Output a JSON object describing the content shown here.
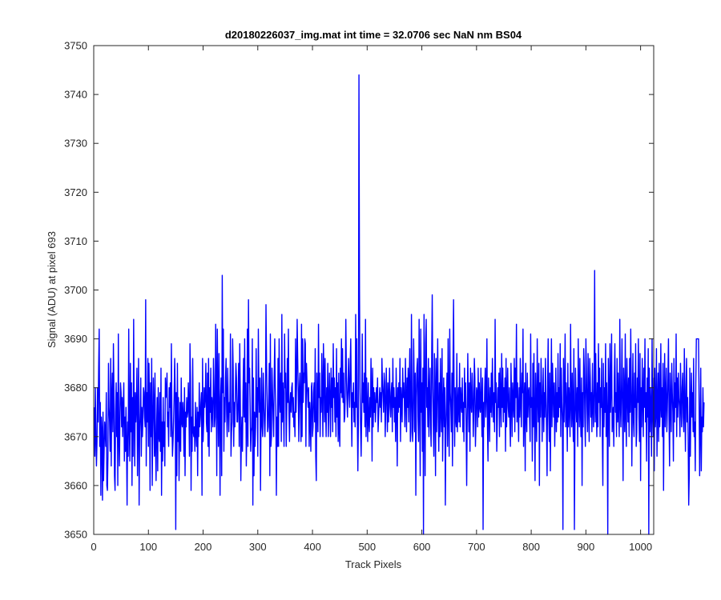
{
  "chart_data": {
    "type": "line",
    "title": "d20180226037_img.mat int time = 32.0706 sec  NaN nm BS04",
    "xlabel": "Track Pixels",
    "ylabel": "Signal (ADU) at pixel 693",
    "xlim": [
      0,
      1024
    ],
    "ylim": [
      3650,
      3750
    ],
    "xticks": [
      0,
      100,
      200,
      300,
      400,
      500,
      600,
      700,
      800,
      900,
      1000
    ],
    "yticks": [
      3650,
      3660,
      3670,
      3680,
      3690,
      3700,
      3710,
      3720,
      3730,
      3740,
      3750
    ],
    "grid": false,
    "line_color": "#0000ff",
    "series": [
      {
        "x_start": 1,
        "x_step": 1,
        "values": [
          3676,
          3666,
          3680,
          3670,
          3664,
          3669,
          3680,
          3673,
          3684,
          3692,
          3668,
          3677,
          3658,
          3674,
          3671,
          3657,
          3675,
          3661,
          3667,
          3673,
          3671,
          3668,
          3679,
          3660,
          3659,
          3666,
          3685,
          3676,
          3673,
          3667,
          3686,
          3664,
          3678,
          3683,
          3671,
          3689,
          3679,
          3662,
          3659,
          3675,
          3681,
          3670,
          3679,
          3660,
          3691,
          3670,
          3664,
          3675,
          3681,
          3679,
          3672,
          3678,
          3670,
          3676,
          3681,
          3665,
          3674,
          3667,
          3676,
          3668,
          3656,
          3673,
          3666,
          3692,
          3672,
          3665,
          3685,
          3671,
          3681,
          3660,
          3678,
          3666,
          3694,
          3674,
          3664,
          3679,
          3673,
          3677,
          3684,
          3662,
          3674,
          3686,
          3656,
          3671,
          3675,
          3682,
          3666,
          3676,
          3670,
          3674,
          3680,
          3679,
          3674,
          3672,
          3698,
          3664,
          3679,
          3673,
          3686,
          3668,
          3685,
          3677,
          3659,
          3681,
          3670,
          3686,
          3660,
          3672,
          3682,
          3676,
          3666,
          3683,
          3668,
          3661,
          3672,
          3678,
          3663,
          3680,
          3670,
          3669,
          3679,
          3667,
          3684,
          3658,
          3673,
          3665,
          3678,
          3668,
          3673,
          3664,
          3682,
          3678,
          3679,
          3683,
          3672,
          3675,
          3668,
          3680,
          3676,
          3681,
          3670,
          3689,
          3674,
          3666,
          3669,
          3673,
          3678,
          3686,
          3679,
          3651,
          3679,
          3662,
          3685,
          3669,
          3678,
          3661,
          3671,
          3677,
          3667,
          3682,
          3673,
          3672,
          3677,
          3674,
          3666,
          3680,
          3662,
          3675,
          3672,
          3678,
          3674,
          3675,
          3681,
          3676,
          3666,
          3689,
          3682,
          3659,
          3674,
          3667,
          3686,
          3671,
          3670,
          3672,
          3667,
          3677,
          3671,
          3668,
          3676,
          3662,
          3675,
          3670,
          3681,
          3672,
          3674,
          3677,
          3679,
          3658,
          3686,
          3669,
          3673,
          3680,
          3676,
          3678,
          3685,
          3673,
          3671,
          3683,
          3668,
          3686,
          3666,
          3680,
          3675,
          3684,
          3671,
          3678,
          3676,
          3672,
          3686,
          3680,
          3672,
          3674,
          3693,
          3681,
          3662,
          3692,
          3679,
          3668,
          3687,
          3676,
          3658,
          3678,
          3682,
          3662,
          3703,
          3679,
          3692,
          3667,
          3678,
          3673,
          3682,
          3686,
          3675,
          3670,
          3684,
          3676,
          3671,
          3677,
          3675,
          3691,
          3666,
          3671,
          3673,
          3690,
          3684,
          3668,
          3677,
          3672,
          3679,
          3685,
          3682,
          3673,
          3673,
          3678,
          3685,
          3668,
          3689,
          3679,
          3661,
          3670,
          3674,
          3667,
          3679,
          3686,
          3674,
          3690,
          3673,
          3681,
          3664,
          3672,
          3692,
          3668,
          3698,
          3681,
          3684,
          3676,
          3667,
          3671,
          3672,
          3690,
          3656,
          3682,
          3662,
          3675,
          3668,
          3672,
          3688,
          3674,
          3680,
          3666,
          3692,
          3680,
          3675,
          3682,
          3659,
          3674,
          3684,
          3672,
          3670,
          3683,
          3678,
          3673,
          3670,
          3676,
          3697,
          3685,
          3678,
          3671,
          3672,
          3678,
          3685,
          3662,
          3691,
          3668,
          3670,
          3684,
          3679,
          3674,
          3670,
          3682,
          3690,
          3680,
          3676,
          3658,
          3674,
          3668,
          3686,
          3668,
          3690,
          3678,
          3675,
          3683,
          3669,
          3695,
          3673,
          3681,
          3676,
          3668,
          3691,
          3680,
          3683,
          3668,
          3675,
          3686,
          3677,
          3692,
          3675,
          3669,
          3677,
          3679,
          3675,
          3680,
          3681,
          3674,
          3678,
          3672,
          3675,
          3670,
          3690,
          3675,
          3681,
          3694,
          3686,
          3679,
          3669,
          3680,
          3683,
          3676,
          3669,
          3693,
          3670,
          3690,
          3677,
          3683,
          3681,
          3690,
          3689,
          3668,
          3685,
          3681,
          3679,
          3676,
          3680,
          3668,
          3677,
          3674,
          3667,
          3680,
          3681,
          3670,
          3672,
          3679,
          3681,
          3673,
          3688,
          3666,
          3661,
          3683,
          3677,
          3671,
          3693,
          3678,
          3683,
          3670,
          3678,
          3675,
          3687,
          3679,
          3670,
          3689,
          3683,
          3673,
          3686,
          3676,
          3670,
          3680,
          3675,
          3685,
          3670,
          3677,
          3683,
          3677,
          3670,
          3684,
          3676,
          3682,
          3671,
          3689,
          3678,
          3682,
          3673,
          3680,
          3670,
          3688,
          3674,
          3681,
          3669,
          3683,
          3671,
          3668,
          3684,
          3679,
          3690,
          3678,
          3688,
          3677,
          3683,
          3673,
          3674,
          3679,
          3694,
          3683,
          3678,
          3674,
          3680,
          3686,
          3679,
          3676,
          3685,
          3690,
          3678,
          3668,
          3679,
          3676,
          3681,
          3673,
          3677,
          3672,
          3695,
          3676,
          3690,
          3674,
          3663,
          3673,
          3744,
          3700,
          3680,
          3672,
          3666,
          3674,
          3691,
          3677,
          3681,
          3675,
          3683,
          3672,
          3694,
          3670,
          3682,
          3676,
          3669,
          3681,
          3673,
          3671,
          3678,
          3674,
          3686,
          3679,
          3665,
          3684,
          3672,
          3680,
          3675,
          3679,
          3673,
          3676,
          3680,
          3677,
          3682,
          3671,
          3674,
          3677,
          3680,
          3676,
          3679,
          3673,
          3686,
          3681,
          3678,
          3675,
          3683,
          3681,
          3670,
          3676,
          3684,
          3678,
          3671,
          3681,
          3673,
          3678,
          3684,
          3676,
          3674,
          3679,
          3681,
          3671,
          3686,
          3676,
          3680,
          3673,
          3678,
          3669,
          3684,
          3677,
          3664,
          3680,
          3675,
          3681,
          3676,
          3686,
          3669,
          3680,
          3677,
          3673,
          3684,
          3678,
          3681,
          3677,
          3672,
          3686,
          3678,
          3671,
          3682,
          3676,
          3684,
          3673,
          3681,
          3688,
          3669,
          3671,
          3695,
          3679,
          3669,
          3672,
          3690,
          3681,
          3671,
          3683,
          3658,
          3678,
          3684,
          3686,
          3674,
          3669,
          3694,
          3677,
          3662,
          3692,
          3675,
          3681,
          3667,
          3684,
          3650,
          3695,
          3679,
          3662,
          3689,
          3694,
          3676,
          3680,
          3672,
          3686,
          3670,
          3679,
          3684,
          3672,
          3668,
          3686,
          3699,
          3681,
          3672,
          3666,
          3687,
          3679,
          3662,
          3686,
          3671,
          3680,
          3690,
          3674,
          3667,
          3681,
          3670,
          3686,
          3675,
          3671,
          3688,
          3665,
          3676,
          3682,
          3672,
          3680,
          3656,
          3672,
          3677,
          3683,
          3668,
          3690,
          3675,
          3666,
          3692,
          3679,
          3676,
          3671,
          3683,
          3664,
          3685,
          3698,
          3679,
          3668,
          3680,
          3674,
          3672,
          3687,
          3671,
          3676,
          3680,
          3673,
          3685,
          3672,
          3680,
          3677,
          3675,
          3682,
          3671,
          3677,
          3669,
          3684,
          3676,
          3681,
          3672,
          3660,
          3674,
          3687,
          3678,
          3671,
          3681,
          3667,
          3684,
          3677,
          3675,
          3683,
          3679,
          3670,
          3675,
          3686,
          3682,
          3668,
          3673,
          3680,
          3679,
          3672,
          3684,
          3674,
          3681,
          3676,
          3675,
          3684,
          3677,
          3670,
          3682,
          3651,
          3677,
          3672,
          3680,
          3684,
          3674,
          3679,
          3690,
          3672,
          3665,
          3682,
          3677,
          3669,
          3680,
          3675,
          3683,
          3674,
          3686,
          3678,
          3673,
          3679,
          3671,
          3694,
          3677,
          3681,
          3667,
          3673,
          3680,
          3676,
          3683,
          3670,
          3684,
          3678,
          3672,
          3687,
          3676,
          3684,
          3673,
          3680,
          3675,
          3682,
          3667,
          3686,
          3672,
          3679,
          3684,
          3676,
          3674,
          3680,
          3673,
          3668,
          3685,
          3678,
          3670,
          3681,
          3677,
          3674,
          3686,
          3671,
          3684,
          3678,
          3693,
          3673,
          3681,
          3676,
          3669,
          3680,
          3674,
          3686,
          3677,
          3672,
          3683,
          3679,
          3692,
          3668,
          3677,
          3681,
          3663,
          3685,
          3675,
          3671,
          3683,
          3674,
          3679,
          3680,
          3674,
          3669,
          3691,
          3676,
          3678,
          3665,
          3685,
          3672,
          3687,
          3674,
          3661,
          3683,
          3676,
          3669,
          3690,
          3678,
          3673,
          3685,
          3660,
          3681,
          3674,
          3686,
          3680,
          3669,
          3677,
          3684,
          3671,
          3679,
          3674,
          3686,
          3678,
          3672,
          3662,
          3681,
          3690,
          3675,
          3669,
          3683,
          3663,
          3677,
          3690,
          3672,
          3685,
          3679,
          3674,
          3681,
          3668,
          3676,
          3684,
          3671,
          3679,
          3673,
          3687,
          3674,
          3680,
          3676,
          3689,
          3670,
          3684,
          3677,
          3673,
          3651,
          3686,
          3673,
          3679,
          3691,
          3672,
          3681,
          3676,
          3667,
          3685,
          3672,
          3680,
          3676,
          3670,
          3693,
          3677,
          3672,
          3683,
          3675,
          3669,
          3688,
          3651,
          3671,
          3684,
          3677,
          3673,
          3680,
          3668,
          3690,
          3678,
          3672,
          3686,
          3675,
          3670,
          3682,
          3660,
          3679,
          3672,
          3688,
          3684,
          3674,
          3668,
          3690,
          3683,
          3676,
          3671,
          3687,
          3677,
          3669,
          3686,
          3682,
          3674,
          3679,
          3671,
          3685,
          3676,
          3672,
          3680,
          3704,
          3673,
          3687,
          3676,
          3670,
          3681,
          3672,
          3689,
          3677,
          3684,
          3670,
          3680,
          3676,
          3686,
          3671,
          3660,
          3685,
          3672,
          3680,
          3675,
          3689,
          3670,
          3681,
          3674,
          3650,
          3686,
          3679,
          3668,
          3689,
          3675,
          3680,
          3691,
          3671,
          3674,
          3676,
          3668,
          3682,
          3689,
          3675,
          3679,
          3670,
          3686,
          3673,
          3683,
          3675,
          3670,
          3694,
          3677,
          3672,
          3680,
          3690,
          3675,
          3661,
          3684,
          3678,
          3671,
          3691,
          3675,
          3668,
          3686,
          3679,
          3673,
          3682,
          3670,
          3686,
          3675,
          3692,
          3680,
          3664,
          3677,
          3687,
          3673,
          3670,
          3683,
          3676,
          3689,
          3668,
          3671,
          3682,
          3677,
          3690,
          3674,
          3669,
          3687,
          3661,
          3680,
          3672,
          3686,
          3678,
          3670,
          3684,
          3676,
          3690,
          3673,
          3679,
          3665,
          3682,
          3674,
          3688,
          3650,
          3684,
          3671,
          3680,
          3676,
          3666,
          3690,
          3675,
          3670,
          3682,
          3663,
          3684,
          3672,
          3675,
          3688,
          3666,
          3677,
          3683,
          3669,
          3685,
          3672,
          3676,
          3689,
          3674,
          3680,
          3670,
          3685,
          3659,
          3677,
          3687,
          3672,
          3678,
          3684,
          3671,
          3676,
          3682,
          3690,
          3674,
          3664,
          3683,
          3677,
          3671,
          3685,
          3679,
          3675,
          3665,
          3686,
          3673,
          3681,
          3676,
          3691,
          3670,
          3682,
          3674,
          3683,
          3678,
          3676,
          3670,
          3685,
          3677,
          3672,
          3680,
          3683,
          3674,
          3671,
          3688,
          3676,
          3667,
          3680,
          3686,
          3673,
          3678,
          3670,
          3656,
          3662,
          3684,
          3666,
          3677,
          3683,
          3674,
          3679,
          3671,
          3686,
          3670,
          3673,
          3663,
          3681,
          3690,
          3690,
          3690,
          3690,
          3690,
          3677,
          3662,
          3672,
          3684,
          3663,
          3674,
          3671,
          3680,
          3672,
          3677
        ]
      }
    ]
  }
}
